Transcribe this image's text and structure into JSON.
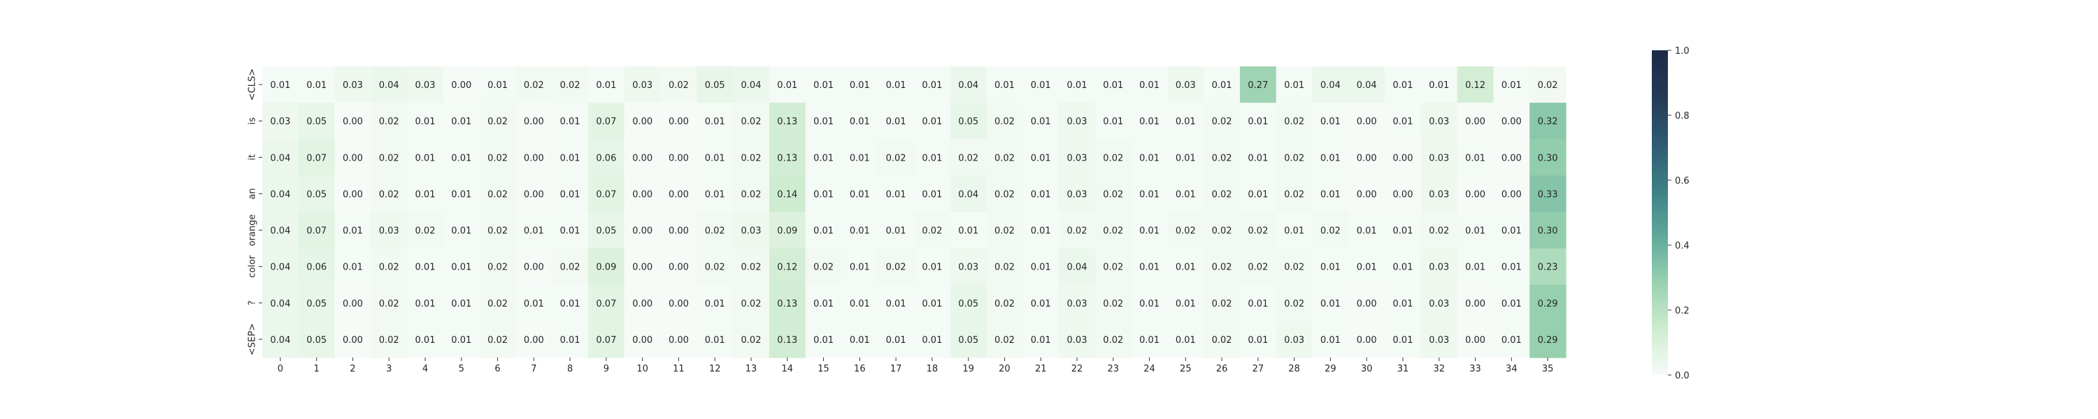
{
  "chart_data": {
    "type": "heatmap",
    "x_labels": [
      "0",
      "1",
      "2",
      "3",
      "4",
      "5",
      "6",
      "7",
      "8",
      "9",
      "10",
      "11",
      "12",
      "13",
      "14",
      "15",
      "16",
      "17",
      "18",
      "19",
      "20",
      "21",
      "22",
      "23",
      "24",
      "25",
      "26",
      "27",
      "28",
      "29",
      "30",
      "31",
      "32",
      "33",
      "34",
      "35"
    ],
    "y_labels": [
      "<CLS>",
      "is",
      "it",
      "an",
      "orange",
      "color",
      "?",
      "<SEP>"
    ],
    "values": [
      [
        0.01,
        0.01,
        0.03,
        0.04,
        0.03,
        0.0,
        0.01,
        0.02,
        0.02,
        0.01,
        0.03,
        0.02,
        0.05,
        0.04,
        0.01,
        0.01,
        0.01,
        0.01,
        0.01,
        0.04,
        0.01,
        0.01,
        0.01,
        0.01,
        0.01,
        0.03,
        0.01,
        0.27,
        0.01,
        0.04,
        0.04,
        0.01,
        0.01,
        0.12,
        0.01,
        0.02
      ],
      [
        0.03,
        0.05,
        0.0,
        0.02,
        0.01,
        0.01,
        0.02,
        0.0,
        0.01,
        0.07,
        0.0,
        0.0,
        0.01,
        0.02,
        0.13,
        0.01,
        0.01,
        0.01,
        0.01,
        0.05,
        0.02,
        0.01,
        0.03,
        0.01,
        0.01,
        0.01,
        0.02,
        0.01,
        0.02,
        0.01,
        0.0,
        0.01,
        0.03,
        0.0,
        0.0,
        0.32
      ],
      [
        0.04,
        0.07,
        0.0,
        0.02,
        0.01,
        0.01,
        0.02,
        0.0,
        0.01,
        0.06,
        0.0,
        0.0,
        0.01,
        0.02,
        0.13,
        0.01,
        0.01,
        0.02,
        0.01,
        0.02,
        0.02,
        0.01,
        0.03,
        0.02,
        0.01,
        0.01,
        0.02,
        0.01,
        0.02,
        0.01,
        0.0,
        0.0,
        0.03,
        0.01,
        0.0,
        0.3
      ],
      [
        0.04,
        0.05,
        0.0,
        0.02,
        0.01,
        0.01,
        0.02,
        0.0,
        0.01,
        0.07,
        0.0,
        0.0,
        0.01,
        0.02,
        0.14,
        0.01,
        0.01,
        0.01,
        0.01,
        0.04,
        0.02,
        0.01,
        0.03,
        0.02,
        0.01,
        0.01,
        0.02,
        0.01,
        0.02,
        0.01,
        0.0,
        0.0,
        0.03,
        0.0,
        0.0,
        0.33
      ],
      [
        0.04,
        0.07,
        0.01,
        0.03,
        0.02,
        0.01,
        0.02,
        0.01,
        0.01,
        0.05,
        0.0,
        0.0,
        0.02,
        0.03,
        0.09,
        0.01,
        0.01,
        0.01,
        0.02,
        0.01,
        0.02,
        0.01,
        0.02,
        0.02,
        0.01,
        0.02,
        0.02,
        0.02,
        0.01,
        0.02,
        0.01,
        0.01,
        0.02,
        0.01,
        0.01,
        0.3
      ],
      [
        0.04,
        0.06,
        0.01,
        0.02,
        0.01,
        0.01,
        0.02,
        0.0,
        0.02,
        0.09,
        0.0,
        0.0,
        0.02,
        0.02,
        0.12,
        0.02,
        0.01,
        0.02,
        0.01,
        0.03,
        0.02,
        0.01,
        0.04,
        0.02,
        0.01,
        0.01,
        0.02,
        0.02,
        0.02,
        0.01,
        0.01,
        0.01,
        0.03,
        0.01,
        0.01,
        0.23
      ],
      [
        0.04,
        0.05,
        0.0,
        0.02,
        0.01,
        0.01,
        0.02,
        0.01,
        0.01,
        0.07,
        0.0,
        0.0,
        0.01,
        0.02,
        0.13,
        0.01,
        0.01,
        0.01,
        0.01,
        0.05,
        0.02,
        0.01,
        0.03,
        0.02,
        0.01,
        0.01,
        0.02,
        0.01,
        0.02,
        0.01,
        0.0,
        0.01,
        0.03,
        0.0,
        0.01,
        0.29
      ],
      [
        0.04,
        0.05,
        0.0,
        0.02,
        0.01,
        0.01,
        0.02,
        0.0,
        0.01,
        0.07,
        0.0,
        0.0,
        0.01,
        0.02,
        0.13,
        0.01,
        0.01,
        0.01,
        0.01,
        0.05,
        0.02,
        0.01,
        0.03,
        0.02,
        0.01,
        0.01,
        0.02,
        0.01,
        0.03,
        0.01,
        0.0,
        0.01,
        0.03,
        0.0,
        0.01,
        0.29
      ]
    ],
    "value_format": "2-decimal",
    "colorbar": {
      "min": 0.0,
      "max": 1.0,
      "ticks": [
        "0.0",
        "0.2",
        "0.4",
        "0.6",
        "0.8",
        "1.0"
      ]
    },
    "colorscale": [
      "#f7fbf8",
      "#cdeccf",
      "#98d1b0",
      "#5fa89b",
      "#3d7f85",
      "#2f5a72",
      "#243a57",
      "#1e2a46"
    ],
    "title": "",
    "xlabel": "",
    "ylabel": "",
    "legend": "colorbar-right"
  }
}
